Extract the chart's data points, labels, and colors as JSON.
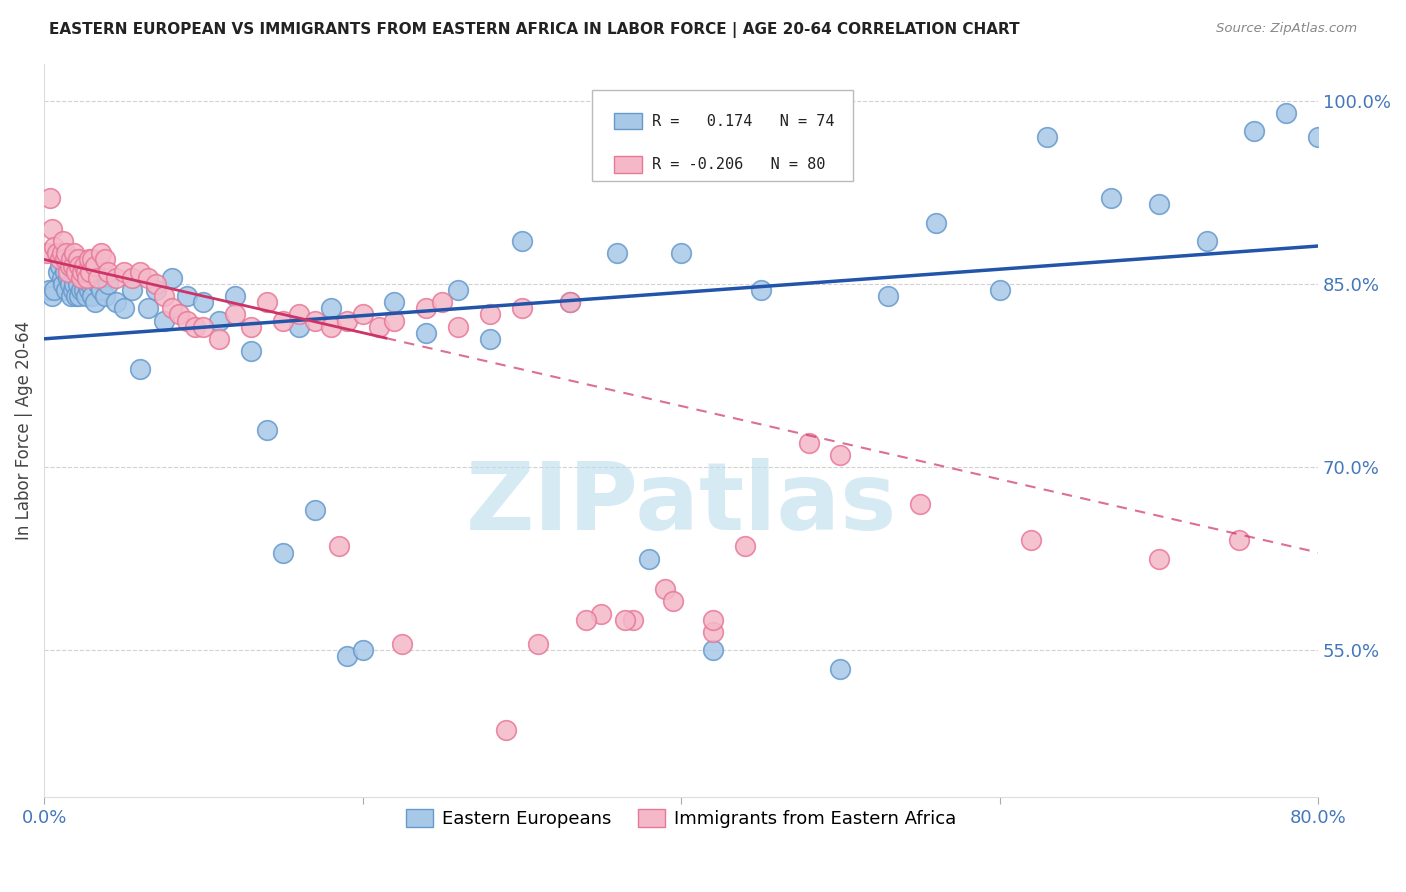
{
  "title": "EASTERN EUROPEAN VS IMMIGRANTS FROM EASTERN AFRICA IN LABOR FORCE | AGE 20-64 CORRELATION CHART",
  "source": "Source: ZipAtlas.com",
  "ylabel": "In Labor Force | Age 20-64",
  "xlim": [
    0.0,
    80.0
  ],
  "ylim": [
    43.0,
    103.0
  ],
  "blue_color": "#a8c8e8",
  "pink_color": "#f4b8c8",
  "blue_edge": "#6699cc",
  "pink_edge": "#e87898",
  "trend_blue": "#2255aa",
  "trend_pink": "#cc3366",
  "watermark": "ZIPatlas",
  "watermark_color": "#bbddee",
  "legend_label_blue": "Eastern Europeans",
  "legend_label_pink": "Immigrants from Eastern Africa",
  "blue_intercept": 80.5,
  "blue_slope": 0.095,
  "pink_intercept": 87.0,
  "pink_slope": -0.3,
  "blue_x": [
    0.3,
    0.5,
    0.6,
    0.8,
    0.9,
    1.0,
    1.1,
    1.2,
    1.3,
    1.4,
    1.5,
    1.6,
    1.7,
    1.8,
    1.9,
    2.0,
    2.1,
    2.2,
    2.3,
    2.4,
    2.5,
    2.6,
    2.7,
    2.8,
    2.9,
    3.0,
    3.2,
    3.4,
    3.6,
    3.8,
    4.0,
    4.5,
    5.0,
    5.5,
    6.0,
    6.5,
    7.0,
    7.5,
    8.0,
    9.0,
    10.0,
    11.0,
    12.0,
    13.0,
    14.0,
    15.0,
    16.0,
    17.0,
    18.0,
    19.0,
    20.0,
    22.0,
    24.0,
    26.0,
    28.0,
    30.0,
    33.0,
    36.0,
    38.0,
    40.0,
    42.0,
    45.0,
    50.0,
    53.0,
    56.0,
    60.0,
    63.0,
    67.0,
    70.0,
    73.0,
    76.0,
    78.0,
    80.0
  ],
  "blue_y": [
    84.5,
    84.0,
    84.5,
    87.5,
    86.0,
    86.5,
    85.5,
    85.0,
    86.0,
    84.5,
    85.5,
    85.0,
    84.0,
    84.5,
    85.0,
    84.0,
    85.0,
    84.0,
    84.5,
    85.5,
    84.5,
    84.0,
    85.0,
    84.5,
    85.0,
    84.0,
    83.5,
    85.0,
    84.5,
    84.0,
    85.0,
    83.5,
    83.0,
    84.5,
    78.0,
    83.0,
    84.5,
    82.0,
    85.5,
    84.0,
    83.5,
    82.0,
    84.0,
    79.5,
    73.0,
    63.0,
    81.5,
    66.5,
    83.0,
    54.5,
    55.0,
    83.5,
    81.0,
    84.5,
    80.5,
    88.5,
    83.5,
    87.5,
    62.5,
    87.5,
    55.0,
    84.5,
    53.5,
    84.0,
    90.0,
    84.5,
    97.0,
    92.0,
    91.5,
    88.5,
    97.5,
    99.0,
    97.0
  ],
  "pink_x": [
    0.2,
    0.4,
    0.5,
    0.6,
    0.8,
    1.0,
    1.1,
    1.2,
    1.3,
    1.4,
    1.5,
    1.6,
    1.7,
    1.8,
    1.9,
    2.0,
    2.1,
    2.2,
    2.3,
    2.4,
    2.5,
    2.6,
    2.7,
    2.8,
    2.9,
    3.0,
    3.2,
    3.4,
    3.6,
    3.8,
    4.0,
    4.5,
    5.0,
    5.5,
    6.0,
    6.5,
    7.0,
    7.5,
    8.0,
    8.5,
    9.0,
    9.5,
    10.0,
    11.0,
    12.0,
    13.0,
    14.0,
    15.0,
    16.0,
    17.0,
    18.0,
    19.0,
    20.0,
    21.0,
    22.0,
    24.0,
    26.0,
    28.0,
    30.0,
    33.0,
    35.0,
    37.0,
    39.0,
    42.0,
    48.0,
    55.0,
    62.0,
    70.0,
    75.0,
    18.5,
    22.5,
    25.0,
    29.0,
    31.0,
    34.0,
    36.5,
    39.5,
    42.0,
    44.0,
    50.0
  ],
  "pink_y": [
    87.5,
    92.0,
    89.5,
    88.0,
    87.5,
    87.0,
    87.5,
    88.5,
    87.0,
    87.5,
    86.0,
    86.5,
    87.0,
    86.5,
    87.5,
    86.0,
    87.0,
    86.5,
    85.5,
    86.0,
    86.5,
    86.0,
    85.5,
    87.0,
    86.0,
    87.0,
    86.5,
    85.5,
    87.5,
    87.0,
    86.0,
    85.5,
    86.0,
    85.5,
    86.0,
    85.5,
    85.0,
    84.0,
    83.0,
    82.5,
    82.0,
    81.5,
    81.5,
    80.5,
    82.5,
    81.5,
    83.5,
    82.0,
    82.5,
    82.0,
    81.5,
    82.0,
    82.5,
    81.5,
    82.0,
    83.0,
    81.5,
    82.5,
    83.0,
    83.5,
    58.0,
    57.5,
    60.0,
    56.5,
    72.0,
    67.0,
    64.0,
    62.5,
    64.0,
    63.5,
    55.5,
    83.5,
    48.5,
    55.5,
    57.5,
    57.5,
    59.0,
    57.5,
    63.5,
    71.0
  ]
}
